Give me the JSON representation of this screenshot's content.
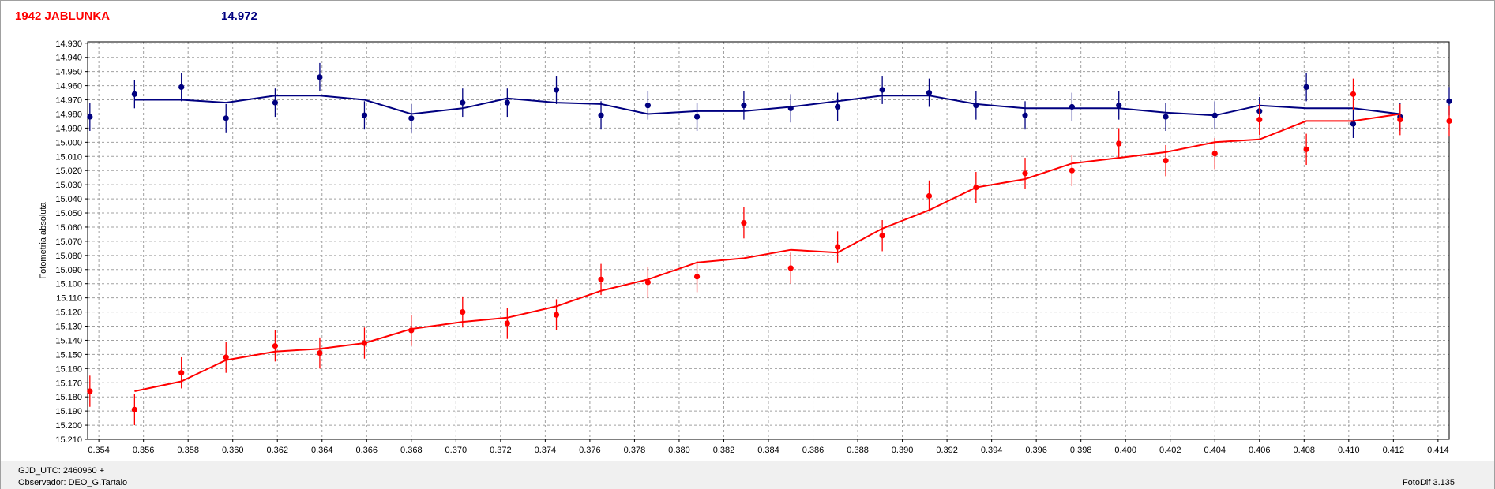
{
  "header": {
    "object_name": "1942 JABLUNKA",
    "magnitude": "14.972"
  },
  "footer": {
    "gjd_label": "GJD_UTC: 2460960 +",
    "observer_label": "Observador: DEO_G.Tartalo",
    "software": "FotoDif 3.135"
  },
  "colors": {
    "series_blue": "#000080",
    "series_red": "#ff0000",
    "grid": "#a0a0a0"
  },
  "chart_data": {
    "type": "scatter",
    "title": "",
    "xlabel": "",
    "ylabel": "Fotometria absoluta",
    "xlim": [
      0.3535,
      0.4145
    ],
    "ylim": [
      15.21,
      14.929
    ],
    "y_inverted": true,
    "grid": true,
    "x_ticks": [
      0.354,
      0.356,
      0.358,
      0.36,
      0.362,
      0.364,
      0.366,
      0.368,
      0.37,
      0.372,
      0.374,
      0.376,
      0.378,
      0.38,
      0.382,
      0.384,
      0.386,
      0.388,
      0.39,
      0.392,
      0.394,
      0.396,
      0.398,
      0.4,
      0.402,
      0.404,
      0.406,
      0.408,
      0.41,
      0.412,
      0.414
    ],
    "x_tick_labels": [
      "0.354",
      "0.356",
      "0.358",
      "0.360",
      "0.362",
      "0.364",
      "0.366",
      "0.368",
      "0.370",
      "0.372",
      "0.374",
      "0.376",
      "0.378",
      "0.380",
      "0.382",
      "0.384",
      "0.386",
      "0.388",
      "0.390",
      "0.392",
      "0.394",
      "0.396",
      "0.398",
      "0.400",
      "0.402",
      "0.404",
      "0.406",
      "0.408",
      "0.410",
      "0.412",
      "0.414"
    ],
    "y_ticks": [
      14.93,
      14.94,
      14.95,
      14.96,
      14.97,
      14.98,
      14.99,
      15.0,
      15.01,
      15.02,
      15.03,
      15.04,
      15.05,
      15.06,
      15.07,
      15.08,
      15.09,
      15.1,
      15.11,
      15.12,
      15.13,
      15.14,
      15.15,
      15.16,
      15.17,
      15.18,
      15.19,
      15.2,
      15.21
    ],
    "y_tick_labels": [
      "14.930",
      "14.940",
      "14.950",
      "14.960",
      "14.970",
      "14.980",
      "14.990",
      "15.000",
      "15.010",
      "15.020",
      "15.030",
      "15.040",
      "15.050",
      "15.060",
      "15.070",
      "15.080",
      "15.090",
      "15.100",
      "15.110",
      "15.120",
      "15.130",
      "15.140",
      "15.150",
      "15.160",
      "15.170",
      "15.180",
      "15.190",
      "15.200",
      "15.210"
    ],
    "series": [
      {
        "color": "#000080",
        "err": 0.01,
        "x": [
          0.3536,
          0.3556,
          0.3577,
          0.3597,
          0.3619,
          0.3639,
          0.3659,
          0.368,
          0.3703,
          0.3723,
          0.3745,
          0.3765,
          0.3786,
          0.3808,
          0.3829,
          0.385,
          0.3871,
          0.3891,
          0.3912,
          0.3933,
          0.3955,
          0.3976,
          0.3997,
          0.4018,
          0.404,
          0.406,
          0.4081,
          0.4102,
          0.4123,
          0.4145
        ],
        "y": [
          14.982,
          14.966,
          14.961,
          14.983,
          14.972,
          14.954,
          14.981,
          14.983,
          14.972,
          14.972,
          14.963,
          14.981,
          14.974,
          14.982,
          14.974,
          14.976,
          14.975,
          14.963,
          14.965,
          14.974,
          14.981,
          14.975,
          14.974,
          14.982,
          14.981,
          14.978,
          14.961,
          14.987,
          14.982,
          14.971
        ],
        "line_x": [
          0.3556,
          0.3577,
          0.3597,
          0.3619,
          0.3639,
          0.3659,
          0.368,
          0.3703,
          0.3723,
          0.3745,
          0.3765,
          0.3786,
          0.3808,
          0.3829,
          0.385,
          0.3871,
          0.3891,
          0.3912,
          0.3933,
          0.3955,
          0.3976,
          0.3997,
          0.4018,
          0.404,
          0.406,
          0.4081,
          0.4102,
          0.4123
        ],
        "line_y": [
          14.97,
          14.97,
          14.972,
          14.967,
          14.967,
          14.97,
          14.98,
          14.976,
          14.969,
          14.972,
          14.973,
          14.98,
          14.978,
          14.978,
          14.975,
          14.971,
          14.967,
          14.967,
          14.973,
          14.976,
          14.976,
          14.976,
          14.979,
          14.981,
          14.974,
          14.976,
          14.976,
          14.98
        ]
      },
      {
        "color": "#ff0000",
        "err": 0.011,
        "x": [
          0.3536,
          0.3556,
          0.3577,
          0.3597,
          0.3619,
          0.3639,
          0.3659,
          0.368,
          0.3703,
          0.3723,
          0.3745,
          0.3765,
          0.3786,
          0.3808,
          0.3829,
          0.385,
          0.3871,
          0.3891,
          0.3912,
          0.3933,
          0.3955,
          0.3976,
          0.3997,
          0.4018,
          0.404,
          0.406,
          0.4081,
          0.4102,
          0.4123,
          0.4145
        ],
        "y": [
          15.176,
          15.189,
          15.163,
          15.152,
          15.144,
          15.149,
          15.142,
          15.133,
          15.12,
          15.128,
          15.122,
          15.097,
          15.099,
          15.095,
          15.057,
          15.089,
          15.074,
          15.066,
          15.038,
          15.032,
          15.022,
          15.02,
          15.001,
          15.013,
          15.008,
          14.984,
          15.005,
          14.966,
          14.984,
          14.985
        ],
        "line_x": [
          0.3556,
          0.3577,
          0.3597,
          0.3619,
          0.3639,
          0.3659,
          0.368,
          0.3703,
          0.3723,
          0.3745,
          0.3765,
          0.3786,
          0.3808,
          0.3829,
          0.385,
          0.3871,
          0.3891,
          0.3912,
          0.3933,
          0.3955,
          0.3976,
          0.3997,
          0.4018,
          0.404,
          0.406,
          0.4081,
          0.4102,
          0.4123
        ],
        "line_y": [
          15.176,
          15.169,
          15.154,
          15.148,
          15.146,
          15.142,
          15.132,
          15.127,
          15.124,
          15.116,
          15.105,
          15.097,
          15.085,
          15.082,
          15.076,
          15.078,
          15.061,
          15.048,
          15.032,
          15.026,
          15.015,
          15.011,
          15.007,
          15.0,
          14.998,
          14.985,
          14.985,
          14.98
        ]
      }
    ]
  }
}
